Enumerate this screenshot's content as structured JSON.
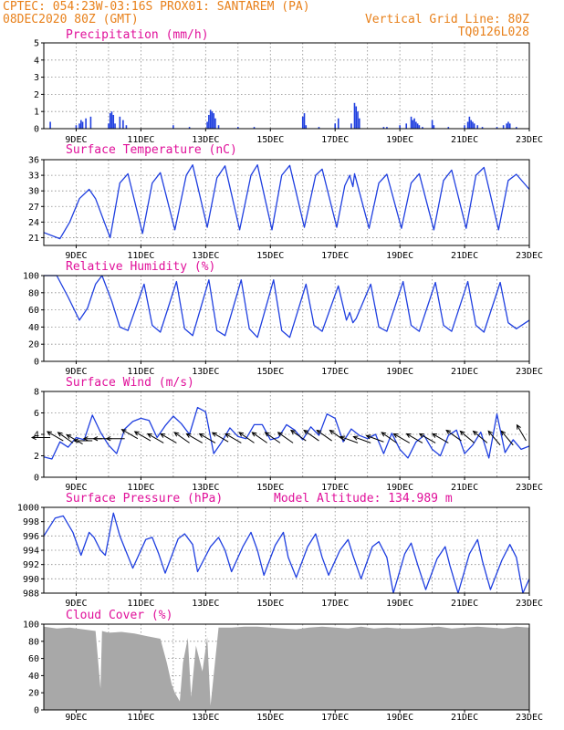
{
  "header": {
    "line1": "CPTEC:  054:23W-03:16S  PROX01: SANTAREM (PA)",
    "line2": "08DEC2020 80Z (GMT)",
    "grid_note": "Vertical Grid Line: 80Z",
    "code": "TQ0126L028"
  },
  "colors": {
    "header": "#e8801a",
    "title": "#e0109a",
    "series": "#1f3fe0",
    "cloud": "#a8a8a8",
    "arrow": "#000000"
  },
  "x_axis": {
    "start": "08DEC2020 00Z",
    "end": "23DEC2020 00Z",
    "tick_days": [
      9,
      11,
      13,
      15,
      17,
      19,
      21,
      23
    ],
    "tick_labels": [
      "9DEC",
      "11DEC",
      "13DEC",
      "15DEC",
      "17DEC",
      "19DEC",
      "21DEC",
      "23DEC"
    ]
  },
  "chart_data": [
    {
      "type": "bar",
      "title": "Precipitation (mm/h)",
      "ylim": [
        0,
        5
      ],
      "yticks": [
        0,
        1,
        2,
        3,
        4,
        5
      ],
      "x": [
        8.2,
        9.0,
        9.1,
        9.15,
        9.2,
        9.3,
        9.45,
        10.0,
        10.05,
        10.1,
        10.15,
        10.2,
        10.35,
        10.45,
        10.55,
        12.0,
        12.5,
        13.05,
        13.1,
        13.15,
        13.2,
        13.25,
        13.3,
        13.4,
        14.0,
        14.5,
        16.0,
        16.05,
        16.1,
        16.5,
        17.0,
        17.1,
        17.5,
        17.6,
        17.65,
        17.7,
        17.75,
        18.5,
        18.6,
        19.0,
        19.2,
        19.35,
        19.4,
        19.45,
        19.5,
        19.55,
        19.6,
        19.7,
        20.0,
        20.05,
        20.5,
        21.0,
        21.1,
        21.15,
        21.2,
        21.25,
        21.3,
        21.4,
        21.55,
        22.0,
        22.2,
        22.3,
        22.35,
        22.4,
        22.6
      ],
      "values": [
        0.4,
        0.2,
        0.3,
        0.5,
        0.4,
        0.6,
        0.7,
        0.3,
        0.9,
        1.0,
        0.8,
        0.3,
        0.7,
        0.5,
        0.2,
        0.2,
        0.1,
        0.4,
        0.8,
        1.1,
        1.0,
        0.9,
        0.6,
        0.2,
        0.1,
        0.1,
        0.7,
        0.9,
        0.2,
        0.1,
        0.3,
        0.6,
        0.3,
        1.5,
        1.3,
        1.0,
        0.6,
        0.1,
        0.1,
        0.2,
        0.3,
        0.7,
        0.5,
        0.6,
        0.4,
        0.3,
        0.2,
        0.1,
        0.5,
        0.2,
        0.1,
        0.2,
        0.4,
        0.7,
        0.5,
        0.4,
        0.3,
        0.2,
        0.1,
        0.1,
        0.2,
        0.3,
        0.4,
        0.3,
        0.1
      ]
    },
    {
      "type": "line",
      "title": "Surface Temperature (nC)",
      "ylim": [
        19.5,
        36
      ],
      "yticks": [
        21,
        24,
        27,
        30,
        33,
        36
      ],
      "x": [
        8.0,
        8.5,
        8.8,
        9.1,
        9.4,
        9.6,
        10.05,
        10.35,
        10.6,
        11.05,
        11.35,
        11.6,
        12.05,
        12.4,
        12.6,
        13.05,
        13.35,
        13.6,
        14.05,
        14.4,
        14.6,
        15.05,
        15.35,
        15.6,
        16.05,
        16.4,
        16.6,
        17.05,
        17.3,
        17.45,
        17.55,
        17.6,
        18.05,
        18.35,
        18.6,
        19.05,
        19.35,
        19.6,
        20.05,
        20.35,
        20.6,
        21.05,
        21.35,
        21.6,
        22.05,
        22.35,
        22.6,
        23.0
      ],
      "values": [
        22.0,
        20.8,
        24.0,
        28.5,
        30.3,
        28.5,
        21.0,
        31.5,
        33.3,
        21.8,
        31.5,
        33.5,
        22.5,
        33.0,
        35.0,
        23.0,
        32.5,
        34.8,
        22.5,
        33.0,
        35.0,
        22.5,
        33.0,
        34.9,
        23.0,
        33.0,
        34.2,
        23.0,
        31.0,
        33.0,
        30.8,
        33.3,
        22.8,
        31.5,
        33.2,
        22.8,
        31.5,
        33.3,
        22.5,
        32.0,
        34.0,
        22.8,
        33.0,
        34.5,
        22.5,
        32.0,
        33.2,
        30.3
      ]
    },
    {
      "type": "line",
      "title": "Relative Humidity (%)",
      "ylim": [
        0,
        100
      ],
      "yticks": [
        0,
        20,
        40,
        60,
        80,
        100
      ],
      "x": [
        8.0,
        8.4,
        8.75,
        9.1,
        9.35,
        9.6,
        9.8,
        10.1,
        10.35,
        10.6,
        11.1,
        11.35,
        11.6,
        12.1,
        12.35,
        12.6,
        13.1,
        13.35,
        13.6,
        14.1,
        14.35,
        14.6,
        15.1,
        15.35,
        15.6,
        16.1,
        16.35,
        16.6,
        17.1,
        17.35,
        17.45,
        17.55,
        17.65,
        18.1,
        18.35,
        18.6,
        19.1,
        19.35,
        19.6,
        20.1,
        20.35,
        20.6,
        21.1,
        21.35,
        21.6,
        22.1,
        22.35,
        22.6,
        23.0
      ],
      "values": [
        100,
        100,
        75,
        48,
        62,
        90,
        100,
        70,
        40,
        36,
        90,
        42,
        34,
        93,
        38,
        30,
        95,
        36,
        30,
        95,
        38,
        28,
        95,
        36,
        28,
        90,
        42,
        35,
        88,
        48,
        57,
        45,
        50,
        90,
        40,
        35,
        93,
        42,
        35,
        92,
        42,
        35,
        93,
        42,
        34,
        92,
        45,
        38,
        48
      ]
    },
    {
      "type": "line",
      "title": "Surface Wind (m/s)",
      "ylim": [
        0,
        8
      ],
      "yticks": [
        0,
        2,
        4,
        6,
        8
      ],
      "x": [
        8.0,
        8.25,
        8.5,
        8.75,
        9.0,
        9.25,
        9.5,
        9.75,
        10.0,
        10.25,
        10.5,
        10.75,
        11.0,
        11.25,
        11.5,
        11.75,
        12.0,
        12.25,
        12.5,
        12.75,
        13.0,
        13.25,
        13.5,
        13.75,
        14.0,
        14.25,
        14.5,
        14.75,
        15.0,
        15.25,
        15.5,
        15.75,
        16.0,
        16.25,
        16.5,
        16.75,
        17.0,
        17.25,
        17.5,
        17.75,
        18.0,
        18.25,
        18.5,
        18.75,
        19.0,
        19.25,
        19.5,
        19.75,
        20.0,
        20.25,
        20.5,
        20.75,
        21.0,
        21.25,
        21.5,
        21.75,
        22.0,
        22.25,
        22.5,
        22.75,
        23.0
      ],
      "values": [
        1.9,
        1.7,
        3.3,
        2.8,
        3.7,
        3.5,
        5.8,
        4.2,
        3.0,
        2.2,
        4.5,
        5.2,
        5.5,
        5.3,
        3.7,
        4.8,
        5.7,
        5.0,
        4.0,
        6.5,
        6.1,
        2.2,
        3.3,
        4.6,
        3.8,
        3.6,
        4.9,
        4.9,
        3.5,
        3.7,
        4.9,
        4.4,
        3.5,
        4.7,
        3.9,
        5.9,
        5.5,
        3.3,
        4.5,
        3.9,
        3.6,
        4.0,
        2.2,
        4.1,
        2.6,
        1.8,
        3.3,
        3.9,
        2.6,
        2.0,
        3.9,
        4.4,
        2.2,
        3.0,
        4.2,
        1.8,
        5.9,
        2.3,
        3.5,
        2.6,
        2.9
      ],
      "arrows": {
        "x": [
          8.2,
          8.6,
          8.9,
          9.2,
          9.5,
          9.8,
          10.1,
          10.5,
          10.9,
          11.3,
          11.7,
          12.1,
          12.5,
          12.9,
          13.3,
          13.7,
          14.1,
          14.5,
          14.9,
          15.3,
          15.7,
          16.1,
          16.5,
          16.9,
          17.3,
          17.7,
          18.1,
          18.5,
          18.9,
          19.3,
          19.7,
          20.1,
          20.5,
          20.9,
          21.3,
          21.7,
          22.1,
          22.5,
          22.9
        ],
        "speed": [
          3.7,
          3.4,
          3.2,
          3.1,
          3.4,
          3.6,
          3.6,
          3.6,
          3.6,
          3.4,
          3.2,
          3.2,
          3.2,
          3.2,
          3.2,
          3.3,
          3.2,
          3.2,
          3.2,
          3.2,
          3.2,
          3.4,
          3.4,
          3.4,
          3.4,
          3.2,
          3.2,
          3.3,
          3.2,
          3.2,
          3.2,
          3.2,
          3.2,
          3.4,
          3.2,
          3.2,
          3.0,
          3.0,
          3.4
        ],
        "angle_deg": [
          180,
          210,
          215,
          210,
          180,
          180,
          180,
          180,
          210,
          210,
          210,
          210,
          215,
          210,
          210,
          210,
          210,
          215,
          215,
          215,
          215,
          215,
          215,
          215,
          215,
          200,
          200,
          200,
          215,
          210,
          210,
          210,
          210,
          215,
          220,
          220,
          230,
          230,
          240
        ]
      }
    },
    {
      "type": "line",
      "title": "Surface Pressure (hPa)",
      "subtitle": "Model Altitude: 134.989 m",
      "ylim": [
        988,
        1000
      ],
      "yticks": [
        988,
        990,
        992,
        994,
        996,
        998,
        1000
      ],
      "x": [
        8.0,
        8.35,
        8.6,
        8.9,
        9.15,
        9.4,
        9.55,
        9.75,
        9.9,
        10.15,
        10.35,
        10.5,
        10.75,
        11.15,
        11.35,
        11.55,
        11.75,
        12.15,
        12.35,
        12.6,
        12.75,
        13.15,
        13.4,
        13.6,
        13.8,
        14.15,
        14.4,
        14.6,
        14.8,
        15.15,
        15.4,
        15.55,
        15.8,
        16.15,
        16.4,
        16.6,
        16.8,
        17.15,
        17.4,
        17.55,
        17.8,
        18.15,
        18.35,
        18.6,
        18.8,
        19.15,
        19.35,
        19.55,
        19.8,
        20.15,
        20.4,
        20.55,
        20.8,
        21.15,
        21.4,
        21.55,
        21.8,
        22.15,
        22.4,
        22.6,
        22.8,
        23.0
      ],
      "values": [
        996.0,
        998.5,
        998.8,
        996.5,
        993.3,
        996.5,
        995.8,
        994.0,
        993.3,
        999.2,
        996.0,
        994.3,
        991.5,
        995.5,
        995.8,
        993.5,
        990.8,
        995.6,
        996.3,
        994.8,
        991.0,
        994.5,
        995.8,
        994.0,
        991.0,
        994.5,
        996.5,
        994.0,
        990.5,
        994.7,
        996.5,
        993.0,
        990.2,
        994.5,
        996.3,
        993.0,
        990.5,
        994.0,
        995.5,
        993.3,
        990.0,
        994.5,
        995.2,
        993.0,
        988.0,
        993.5,
        995.0,
        992.0,
        988.5,
        992.8,
        994.5,
        991.8,
        988.0,
        993.5,
        995.5,
        992.5,
        988.5,
        992.6,
        994.8,
        993.0,
        988.0,
        990.0
      ]
    },
    {
      "type": "area",
      "title": "Cloud Cover (%)",
      "ylim": [
        0,
        100
      ],
      "yticks": [
        0,
        20,
        40,
        60,
        80,
        100
      ],
      "x": [
        8.0,
        8.4,
        8.8,
        9.2,
        9.6,
        9.75,
        9.8,
        10.0,
        10.4,
        10.8,
        11.2,
        11.6,
        11.8,
        11.95,
        12.05,
        12.2,
        12.3,
        12.45,
        12.55,
        12.7,
        12.9,
        13.05,
        13.15,
        13.4,
        13.8,
        14.2,
        14.6,
        15.0,
        15.4,
        15.8,
        16.2,
        16.6,
        17.0,
        17.4,
        17.8,
        18.2,
        18.6,
        19.0,
        19.4,
        19.8,
        20.2,
        20.6,
        21.0,
        21.4,
        21.8,
        22.2,
        22.6,
        23.0
      ],
      "values": [
        97,
        95,
        96,
        94,
        92,
        25,
        92,
        90,
        91,
        89,
        86,
        83,
        55,
        30,
        20,
        10,
        55,
        84,
        15,
        75,
        45,
        85,
        5,
        96,
        96,
        97,
        97,
        96,
        95,
        94,
        96,
        97,
        96,
        95,
        97,
        95,
        96,
        95,
        95,
        96,
        97,
        95,
        96,
        97,
        96,
        95,
        97,
        96
      ]
    }
  ]
}
